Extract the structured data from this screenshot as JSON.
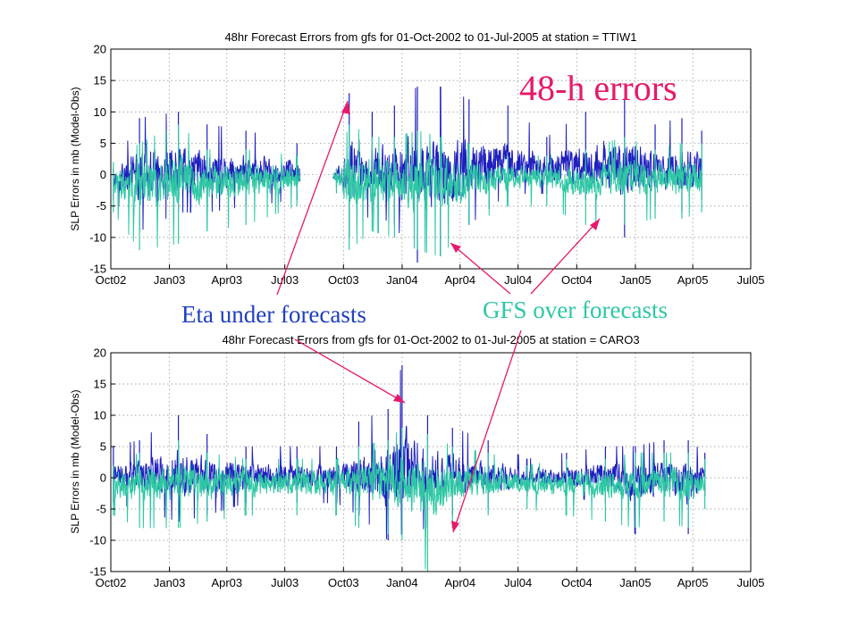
{
  "colors": {
    "eta_series": "#1f1fbf",
    "gfs_series": "#2ec7a4",
    "title_annotation": "#e6196a",
    "eta_annotation": "#1f3fbf",
    "gfs_annotation": "#2ec7a4",
    "arrow": "#e6196a"
  },
  "annotations": {
    "title": "48-h errors",
    "eta": "Eta under forecasts",
    "gfs": "GFS over forecasts"
  },
  "chart_data": [
    {
      "type": "line",
      "title": "48hr Forecast Errors from gfs for 01-Oct-2002 to 01-Jul-2005 at station = TTIW1",
      "ylabel": "SLP Errors in mb (Model-Obs)",
      "xlabel": "",
      "ylim": [
        -15,
        20
      ],
      "yticks": [
        -15,
        -10,
        -5,
        0,
        5,
        10,
        15,
        20
      ],
      "xlim": [
        "2002-10-01",
        "2005-07-01"
      ],
      "xtick_labels": [
        "Oct02",
        "Jan03",
        "Apr03",
        "Jul03",
        "Oct03",
        "Jan04",
        "Apr04",
        "Jul04",
        "Oct04",
        "Jan05",
        "Apr05",
        "Jul05"
      ],
      "grid": true,
      "data_gaps": [
        [
          "2003-07-25",
          "2003-09-15"
        ]
      ],
      "series": [
        {
          "color": "#1f1fbf",
          "x": [
            "2002-10-05",
            "2002-11-15",
            "2003-01-15",
            "2003-03-01",
            "2003-05-01",
            "2003-07-20",
            "2003-09-20",
            "2003-10-10",
            "2003-11-15",
            "2003-12-20",
            "2004-01-25",
            "2004-03-01",
            "2004-04-15",
            "2004-06-15",
            "2004-08-15",
            "2004-10-15",
            "2004-12-15",
            "2005-02-01",
            "2005-03-15",
            "2005-04-15"
          ],
          "values": [
            1,
            9,
            10,
            8,
            7,
            5,
            1,
            13,
            10,
            11,
            14,
            14,
            12,
            11,
            6,
            10,
            12,
            8,
            9,
            7
          ],
          "min_values": [
            -4,
            -9,
            -6,
            -6,
            -5,
            -4,
            -2,
            -10,
            -6,
            -8,
            -14,
            -13,
            -8,
            -3,
            -3,
            -4,
            -10,
            -5,
            -6,
            -4
          ]
        },
        {
          "color": "#2ec7a4",
          "x": [
            "2002-10-05",
            "2002-11-15",
            "2003-01-15",
            "2003-03-01",
            "2003-05-01",
            "2003-07-20",
            "2003-09-20",
            "2003-10-10",
            "2003-11-15",
            "2003-12-20",
            "2004-01-25",
            "2004-03-01",
            "2004-04-15",
            "2004-06-15",
            "2004-08-15",
            "2004-10-15",
            "2004-12-15",
            "2005-02-01",
            "2005-03-15",
            "2005-04-15"
          ],
          "values": [
            2,
            5,
            8,
            4,
            4,
            3,
            1,
            8,
            6,
            6,
            7,
            6,
            5,
            3,
            3,
            4,
            6,
            4,
            5,
            5
          ],
          "min_values": [
            -6,
            -12,
            -11,
            -9,
            -8,
            -5,
            -3,
            -12,
            -9,
            -10,
            -12,
            -13,
            -8,
            -5,
            -5,
            -8,
            -8,
            -7,
            -7,
            -6
          ]
        }
      ]
    },
    {
      "type": "line",
      "title": "48hr Forecast Errors from gfs for 01-Oct-2002 to 01-Jul-2005 at station = CARO3",
      "ylabel": "SLP Errors in mb (Model-Obs)",
      "xlabel": "",
      "ylim": [
        -15,
        20
      ],
      "yticks": [
        -15,
        -10,
        -5,
        0,
        5,
        10,
        15,
        20
      ],
      "xlim": [
        "2002-10-01",
        "2005-07-01"
      ],
      "xtick_labels": [
        "Oct02",
        "Jan03",
        "Apr03",
        "Jul03",
        "Oct03",
        "Jan04",
        "Apr04",
        "Jul04",
        "Oct04",
        "Jan05",
        "Apr05",
        "Jul05"
      ],
      "grid": true,
      "data_gaps": [],
      "series": [
        {
          "color": "#1f1fbf",
          "x": [
            "2002-10-05",
            "2002-11-15",
            "2003-01-15",
            "2003-03-01",
            "2003-05-01",
            "2003-07-20",
            "2003-09-20",
            "2003-10-25",
            "2003-12-10",
            "2004-01-01",
            "2004-02-10",
            "2004-03-20",
            "2004-05-15",
            "2004-07-15",
            "2004-09-15",
            "2004-11-15",
            "2005-01-01",
            "2005-02-15",
            "2005-03-25",
            "2005-04-20"
          ],
          "values": [
            5,
            6,
            10,
            7,
            5,
            5,
            5,
            9,
            11,
            18,
            10,
            8,
            6,
            3,
            4,
            5,
            5,
            6,
            6,
            4
          ],
          "min_values": [
            -4,
            -5,
            -7,
            -6,
            -4,
            -4,
            -4,
            -6,
            -10,
            -9,
            -8,
            -6,
            -5,
            -3,
            -3,
            -4,
            -9,
            -5,
            -9,
            -3
          ]
        },
        {
          "color": "#2ec7a4",
          "x": [
            "2002-10-05",
            "2002-11-15",
            "2003-01-15",
            "2003-03-01",
            "2003-05-01",
            "2003-07-20",
            "2003-09-20",
            "2003-10-25",
            "2003-12-10",
            "2004-01-01",
            "2004-02-10",
            "2004-03-20",
            "2004-05-15",
            "2004-07-15",
            "2004-09-15",
            "2004-11-15",
            "2005-01-01",
            "2005-02-15",
            "2005-03-25",
            "2005-04-20"
          ],
          "values": [
            2,
            4,
            6,
            4,
            3,
            3,
            3,
            5,
            6,
            8,
            7,
            5,
            4,
            2,
            3,
            3,
            4,
            4,
            4,
            3
          ],
          "min_values": [
            -6,
            -8,
            -8,
            -7,
            -6,
            -6,
            -6,
            -8,
            -9,
            -10,
            -15,
            -8,
            -6,
            -5,
            -6,
            -7,
            -8,
            -7,
            -8,
            -5
          ]
        }
      ]
    }
  ]
}
